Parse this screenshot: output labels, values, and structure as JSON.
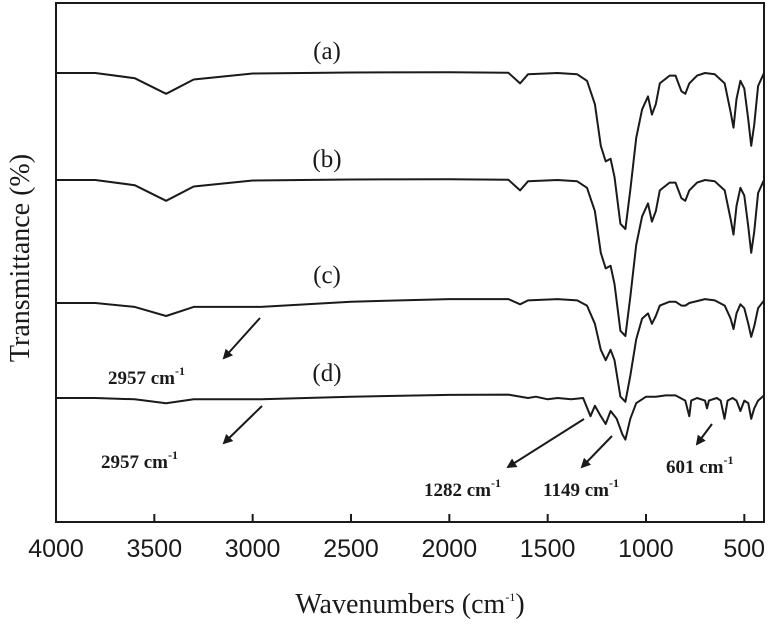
{
  "chart_data": {
    "type": "line",
    "title": "",
    "xlabel": "Wavenumbers (cm",
    "xlabel_sup": "-1",
    "xlabel_tail": ")",
    "ylabel": "Transmittance (%)",
    "xlim": [
      4000,
      400
    ],
    "x_ticks": [
      4000,
      3500,
      3000,
      2500,
      2000,
      1500,
      1000,
      500
    ],
    "grid": false,
    "series": [
      {
        "name": "(a)",
        "offset": 0,
        "points": [
          [
            4000,
            100
          ],
          [
            3800,
            100
          ],
          [
            3600,
            98
          ],
          [
            3440,
            92
          ],
          [
            3300,
            97.5
          ],
          [
            3000,
            99.8
          ],
          [
            2500,
            100.2
          ],
          [
            2000,
            100.3
          ],
          [
            1700,
            100.1
          ],
          [
            1640,
            96
          ],
          [
            1600,
            99.5
          ],
          [
            1450,
            100
          ],
          [
            1350,
            99.5
          ],
          [
            1300,
            97
          ],
          [
            1260,
            88
          ],
          [
            1230,
            72
          ],
          [
            1205,
            66
          ],
          [
            1180,
            67
          ],
          [
            1160,
            60
          ],
          [
            1130,
            42
          ],
          [
            1105,
            40
          ],
          [
            1080,
            55
          ],
          [
            1050,
            75
          ],
          [
            1020,
            86
          ],
          [
            990,
            91
          ],
          [
            970,
            84
          ],
          [
            950,
            88
          ],
          [
            930,
            96
          ],
          [
            880,
            99
          ],
          [
            850,
            99
          ],
          [
            820,
            93
          ],
          [
            800,
            92
          ],
          [
            780,
            96
          ],
          [
            740,
            99
          ],
          [
            700,
            100
          ],
          [
            650,
            99.5
          ],
          [
            600,
            96
          ],
          [
            570,
            85
          ],
          [
            555,
            79
          ],
          [
            540,
            90
          ],
          [
            520,
            97
          ],
          [
            500,
            94
          ],
          [
            480,
            82
          ],
          [
            465,
            72
          ],
          [
            450,
            80
          ],
          [
            430,
            95
          ],
          [
            400,
            100
          ]
        ]
      },
      {
        "name": "(b)",
        "offset": 0,
        "points": [
          [
            4000,
            100
          ],
          [
            3800,
            100
          ],
          [
            3600,
            98
          ],
          [
            3440,
            92
          ],
          [
            3300,
            97.5
          ],
          [
            3000,
            99.8
          ],
          [
            2500,
            100.2
          ],
          [
            2000,
            100.3
          ],
          [
            1700,
            100.1
          ],
          [
            1640,
            96
          ],
          [
            1600,
            99.5
          ],
          [
            1450,
            100
          ],
          [
            1350,
            99.5
          ],
          [
            1300,
            97
          ],
          [
            1260,
            88
          ],
          [
            1230,
            72
          ],
          [
            1205,
            66
          ],
          [
            1180,
            67
          ],
          [
            1160,
            60
          ],
          [
            1130,
            42
          ],
          [
            1105,
            40
          ],
          [
            1080,
            55
          ],
          [
            1050,
            75
          ],
          [
            1020,
            86
          ],
          [
            990,
            91
          ],
          [
            970,
            84
          ],
          [
            950,
            88
          ],
          [
            930,
            96
          ],
          [
            880,
            99
          ],
          [
            850,
            99
          ],
          [
            820,
            93
          ],
          [
            800,
            92
          ],
          [
            780,
            96
          ],
          [
            740,
            99
          ],
          [
            700,
            100
          ],
          [
            650,
            99.5
          ],
          [
            600,
            96
          ],
          [
            570,
            85
          ],
          [
            555,
            79
          ],
          [
            540,
            90
          ],
          [
            520,
            97
          ],
          [
            500,
            94
          ],
          [
            480,
            82
          ],
          [
            465,
            72
          ],
          [
            450,
            80
          ],
          [
            430,
            95
          ],
          [
            400,
            100
          ]
        ]
      },
      {
        "name": "(c)",
        "offset": 0,
        "points": [
          [
            4000,
            100
          ],
          [
            3800,
            100
          ],
          [
            3600,
            98.5
          ],
          [
            3440,
            95
          ],
          [
            3300,
            98.5
          ],
          [
            2957,
            98.5
          ],
          [
            2500,
            100.5
          ],
          [
            2000,
            101.5
          ],
          [
            1700,
            101.5
          ],
          [
            1640,
            99.5
          ],
          [
            1600,
            101
          ],
          [
            1450,
            101.5
          ],
          [
            1350,
            101
          ],
          [
            1300,
            99
          ],
          [
            1260,
            92
          ],
          [
            1230,
            82
          ],
          [
            1205,
            78
          ],
          [
            1180,
            82
          ],
          [
            1160,
            78
          ],
          [
            1130,
            64
          ],
          [
            1105,
            62
          ],
          [
            1080,
            72
          ],
          [
            1050,
            86
          ],
          [
            1020,
            94
          ],
          [
            990,
            96
          ],
          [
            970,
            92
          ],
          [
            950,
            95
          ],
          [
            930,
            99
          ],
          [
            880,
            100.5
          ],
          [
            850,
            100.5
          ],
          [
            820,
            99
          ],
          [
            800,
            99
          ],
          [
            780,
            100
          ],
          [
            700,
            101.5
          ],
          [
            650,
            101
          ],
          [
            600,
            99
          ],
          [
            570,
            94
          ],
          [
            555,
            90
          ],
          [
            540,
            96
          ],
          [
            520,
            99.5
          ],
          [
            500,
            98
          ],
          [
            480,
            92
          ],
          [
            465,
            87
          ],
          [
            450,
            91
          ],
          [
            430,
            98
          ],
          [
            400,
            101
          ]
        ]
      },
      {
        "name": "(d)",
        "offset": 0,
        "points": [
          [
            4000,
            100
          ],
          [
            3800,
            100
          ],
          [
            3600,
            99.5
          ],
          [
            3440,
            98
          ],
          [
            3300,
            99.5
          ],
          [
            2957,
            99.5
          ],
          [
            2500,
            100.5
          ],
          [
            2000,
            101.2
          ],
          [
            1700,
            101.3
          ],
          [
            1600,
            100
          ],
          [
            1560,
            100.5
          ],
          [
            1500,
            99.5
          ],
          [
            1450,
            100
          ],
          [
            1380,
            99.5
          ],
          [
            1320,
            100
          ],
          [
            1282,
            93
          ],
          [
            1260,
            97
          ],
          [
            1230,
            93
          ],
          [
            1205,
            90
          ],
          [
            1180,
            95
          ],
          [
            1149,
            92
          ],
          [
            1120,
            86
          ],
          [
            1105,
            84
          ],
          [
            1080,
            92
          ],
          [
            1050,
            98
          ],
          [
            1000,
            100.5
          ],
          [
            950,
            100.5
          ],
          [
            900,
            101
          ],
          [
            850,
            101
          ],
          [
            800,
            99
          ],
          [
            780,
            93
          ],
          [
            770,
            99
          ],
          [
            740,
            100
          ],
          [
            700,
            99
          ],
          [
            690,
            96
          ],
          [
            680,
            99
          ],
          [
            640,
            100
          ],
          [
            620,
            99
          ],
          [
            601,
            92
          ],
          [
            585,
            99
          ],
          [
            560,
            100
          ],
          [
            540,
            99
          ],
          [
            520,
            95
          ],
          [
            500,
            99
          ],
          [
            480,
            98
          ],
          [
            465,
            92
          ],
          [
            450,
            96
          ],
          [
            430,
            99
          ],
          [
            400,
            101
          ]
        ]
      }
    ],
    "annotations": [
      {
        "text": "2957 cm",
        "sup": "-1",
        "series": "(c)"
      },
      {
        "text": "2957 cm",
        "sup": "-1",
        "series": "(d)"
      },
      {
        "text": "1282 cm",
        "sup": "-1",
        "series": "(d)"
      },
      {
        "text": "1149 cm",
        "sup": "-1",
        "series": "(d)"
      },
      {
        "text": "601 cm",
        "sup": "-1",
        "series": "(d)"
      }
    ]
  }
}
